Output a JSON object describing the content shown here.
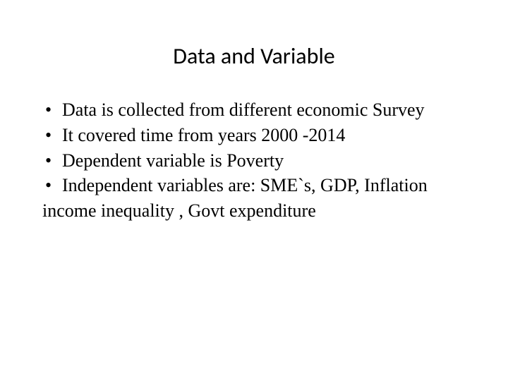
{
  "slide": {
    "title": "Data and Variable",
    "bullets": [
      "Data is collected from different economic Survey",
      "It covered time from years 2000 -2014",
      "Dependent variable is Poverty",
      "Independent variables are: SME`s, GDP, Inflation"
    ],
    "trailing_line": "income inequality , Govt expenditure",
    "styling": {
      "title_font": "Calibri",
      "title_fontsize_pt": 32,
      "body_font": "Times New Roman",
      "body_fontsize_pt": 26,
      "text_color": "#000000",
      "background_color": "#ffffff",
      "bullet_glyph": "•",
      "justified_bullets": [
        0,
        3
      ]
    }
  }
}
